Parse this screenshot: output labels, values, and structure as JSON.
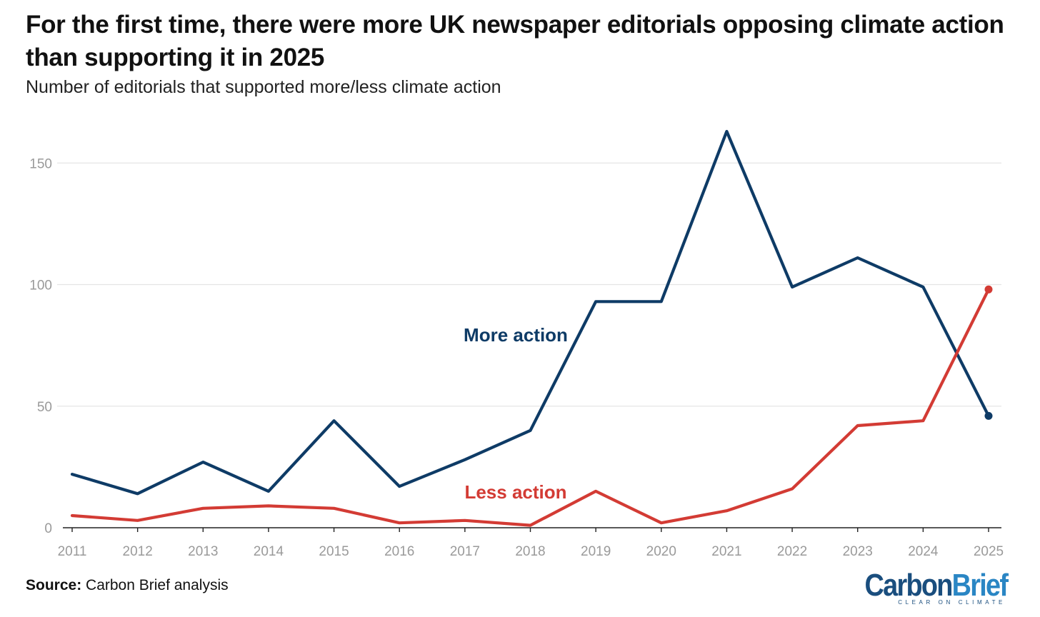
{
  "title": "For the first time, there were more UK newspaper editorials opposing climate action than supporting it in 2025",
  "subtitle": "Number of editorials that supported more/less climate action",
  "source_label": "Source:",
  "source_text": "Carbon Brief analysis",
  "logo": {
    "carbon": "Carbon",
    "brief": "Brief",
    "tagline": "CLEAR ON CLIMATE"
  },
  "colors": {
    "more": "#0e3b66",
    "less": "#d33b34",
    "grid": "#e4e4e4",
    "tick": "#9a9a9a",
    "axis": "#222222"
  },
  "chart_data": {
    "type": "line",
    "title": "For the first time, there were more UK newspaper editorials opposing climate action than supporting it in 2025",
    "xlabel": "",
    "ylabel": "Number of editorials that supported more/less climate action",
    "ylim": [
      0,
      170
    ],
    "yticks": [
      0,
      50,
      100,
      150
    ],
    "grid": true,
    "categories": [
      "2011",
      "2012",
      "2013",
      "2014",
      "2015",
      "2016",
      "2017",
      "2018",
      "2019",
      "2020",
      "2021",
      "2022",
      "2023",
      "2024",
      "2025"
    ],
    "series": [
      {
        "name": "More action",
        "key": "more",
        "values": [
          22,
          14,
          27,
          15,
          44,
          17,
          28,
          40,
          93,
          93,
          163,
          99,
          111,
          99,
          46
        ]
      },
      {
        "name": "Less action",
        "key": "less",
        "values": [
          5,
          3,
          8,
          9,
          8,
          2,
          3,
          1,
          15,
          2,
          7,
          16,
          42,
          44,
          98
        ]
      }
    ]
  }
}
